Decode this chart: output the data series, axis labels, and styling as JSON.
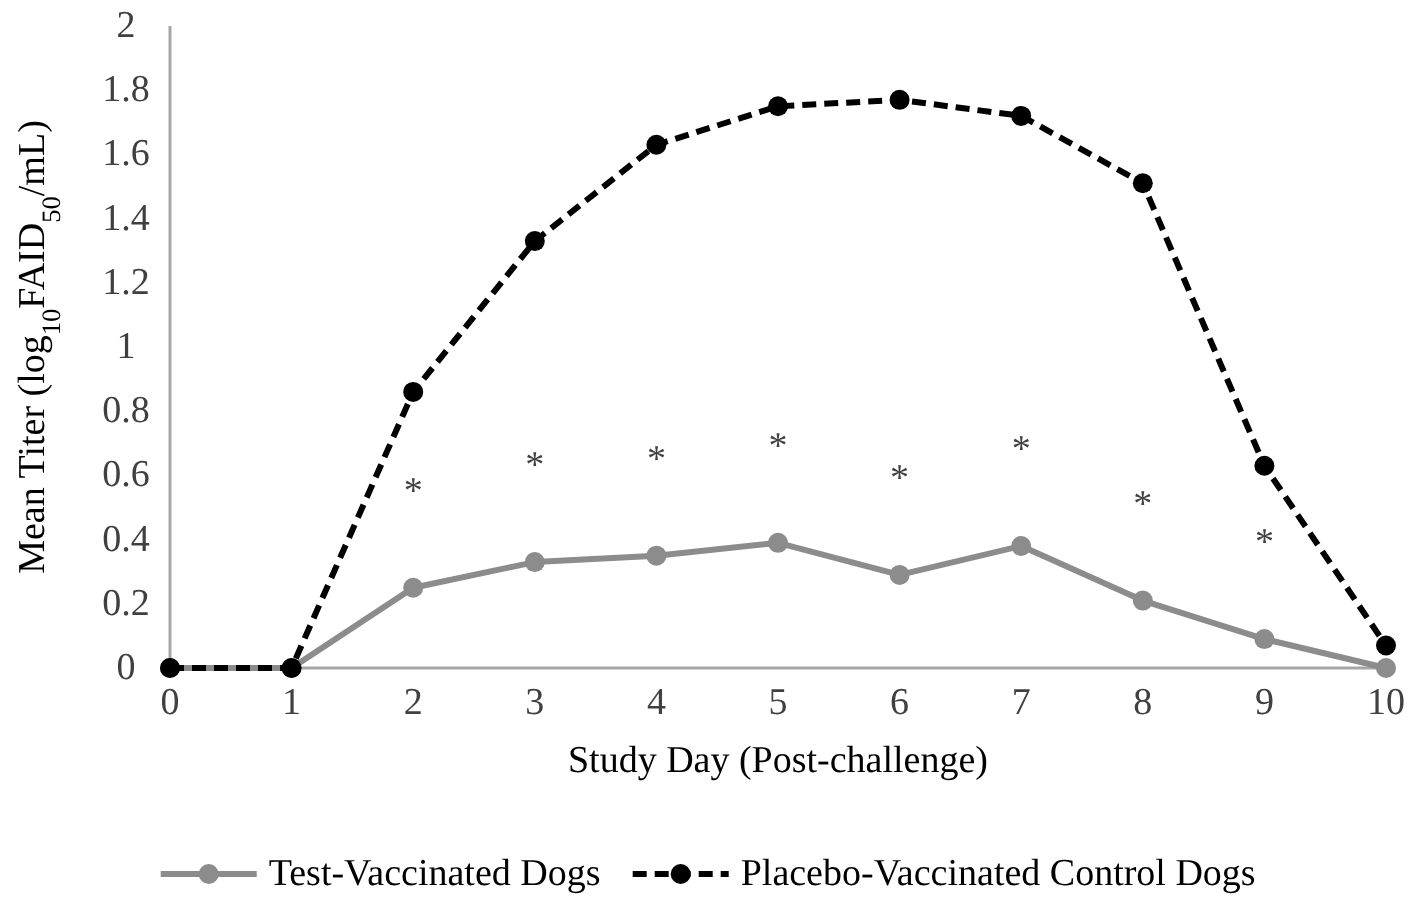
{
  "chart_data": {
    "type": "line",
    "xlabel": "Study Day (Post-challenge)",
    "ylabel": "Mean Titer (log$_{10}$FAID$_{50}$/mL)",
    "categories": [
      "0",
      "1",
      "2",
      "3",
      "4",
      "5",
      "6",
      "7",
      "8",
      "9",
      "10"
    ],
    "series": [
      {
        "name": "Test-Vaccinated Dogs",
        "color": "#8c8c8c",
        "line_style": "solid",
        "values": [
          0,
          0,
          0.25,
          0.33,
          0.35,
          0.39,
          0.29,
          0.38,
          0.21,
          0.09,
          0
        ]
      },
      {
        "name": "Placebo-Vaccinated Control Dogs",
        "color": "#000000",
        "line_style": "dashed",
        "values": [
          0,
          0,
          0.86,
          1.33,
          1.63,
          1.75,
          1.77,
          1.72,
          1.51,
          0.63,
          0.07
        ]
      }
    ],
    "ylim": [
      0,
      2
    ],
    "yticks": [
      0,
      {
        "value": 0.2,
        "label": "0.2"
      },
      {
        "value": 0.4,
        "label": "0.4"
      },
      {
        "value": 0.6,
        "label": "0.6"
      },
      {
        "value": 0.8,
        "label": "0.8"
      },
      1,
      {
        "value": 1.2,
        "label": "1.2"
      },
      {
        "value": 1.4,
        "label": "1.4"
      },
      {
        "value": 1.6,
        "label": "1.6"
      },
      {
        "value": 1.8,
        "label": "1.8"
      },
      2
    ],
    "marker": "circle",
    "grid": false,
    "legend": "bottom",
    "annotations": [
      {
        "text": "*",
        "x": "2",
        "y": 0.25
      },
      {
        "text": "*",
        "x": "3",
        "y": 0.33
      },
      {
        "text": "*",
        "x": "4",
        "y": 0.35
      },
      {
        "text": "*",
        "x": "5",
        "y": 0.39
      },
      {
        "text": "*",
        "x": "6",
        "y": 0.29
      },
      {
        "text": "*",
        "x": "7",
        "y": 0.38
      },
      {
        "text": "*",
        "x": "8",
        "y": 0.21
      },
      {
        "text": "*",
        "x": "9",
        "y": 0.09
      }
    ]
  }
}
